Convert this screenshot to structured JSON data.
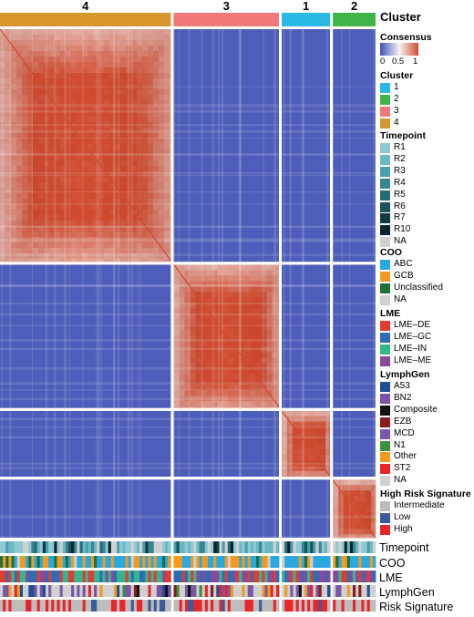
{
  "chart_data": {
    "type": "heatmap",
    "title": "",
    "clusters": [
      {
        "label": "4",
        "n": 60,
        "color": "#d8962e"
      },
      {
        "label": "3",
        "n": 37,
        "color": "#f07878"
      },
      {
        "label": "1",
        "n": 17,
        "color": "#29b9e4"
      },
      {
        "label": "2",
        "n": 15,
        "color": "#3fb549"
      }
    ],
    "matrix_description": "consensus matrix, block-diagonal by cluster",
    "legends": {
      "cluster_title": "Cluster",
      "consensus": {
        "title": "Consensus",
        "ticks": [
          "0",
          "0.5",
          "1"
        ],
        "low": "#3f51b5",
        "mid": "#f4f4f6",
        "high": "#d04b2f"
      },
      "cluster": {
        "title": "Cluster",
        "items": [
          {
            "label": "1",
            "color": "#29b9e4"
          },
          {
            "label": "2",
            "color": "#3fb549"
          },
          {
            "label": "3",
            "color": "#f07878"
          },
          {
            "label": "4",
            "color": "#d8962e"
          }
        ]
      },
      "timepoint": {
        "title": "Timepoint",
        "items": [
          {
            "label": "R1",
            "color": "#8fc9d3"
          },
          {
            "label": "R2",
            "color": "#6bb8c4"
          },
          {
            "label": "R3",
            "color": "#4a9fae"
          },
          {
            "label": "R4",
            "color": "#368591"
          },
          {
            "label": "R5",
            "color": "#266b76"
          },
          {
            "label": "R6",
            "color": "#1a525b"
          },
          {
            "label": "R7",
            "color": "#113b42"
          },
          {
            "label": "R10",
            "color": "#0a2529"
          },
          {
            "label": "NA",
            "color": "#d0d0d0"
          }
        ]
      },
      "coo": {
        "title": "COO",
        "items": [
          {
            "label": "ABC",
            "color": "#2aa8e0"
          },
          {
            "label": "GCB",
            "color": "#f39a1f"
          },
          {
            "label": "Unclassified",
            "color": "#1e6f3a"
          },
          {
            "label": "NA",
            "color": "#d0d0d0"
          }
        ]
      },
      "lme": {
        "title": "LME",
        "items": [
          {
            "label": "LME–DE",
            "color": "#e03c31"
          },
          {
            "label": "LME–GC",
            "color": "#2e6db4"
          },
          {
            "label": "LME–IN",
            "color": "#35b58d"
          },
          {
            "label": "LME–ME",
            "color": "#8a4a9c"
          }
        ]
      },
      "lymphgen": {
        "title": "LymphGen",
        "items": [
          {
            "label": "A53",
            "color": "#1f4e96"
          },
          {
            "label": "BN2",
            "color": "#7b52a8"
          },
          {
            "label": "Composite",
            "color": "#111111"
          },
          {
            "label": "EZB",
            "color": "#8c1b1b"
          },
          {
            "label": "MCD",
            "color": "#7a5aa6"
          },
          {
            "label": "N1",
            "color": "#3c8f3c"
          },
          {
            "label": "Other",
            "color": "#f39a1f"
          },
          {
            "label": "ST2",
            "color": "#e8262a"
          },
          {
            "label": "NA",
            "color": "#d0d0d0"
          }
        ]
      },
      "risk": {
        "title": "High Risk Signature",
        "items": [
          {
            "label": "Intermediate",
            "color": "#bdbdbd"
          },
          {
            "label": "Low",
            "color": "#3b5a9a"
          },
          {
            "label": "High",
            "color": "#e8262a"
          }
        ]
      }
    },
    "tracks": [
      "Timepoint",
      "COO",
      "LME",
      "LymphGen",
      "Risk Signature"
    ]
  }
}
